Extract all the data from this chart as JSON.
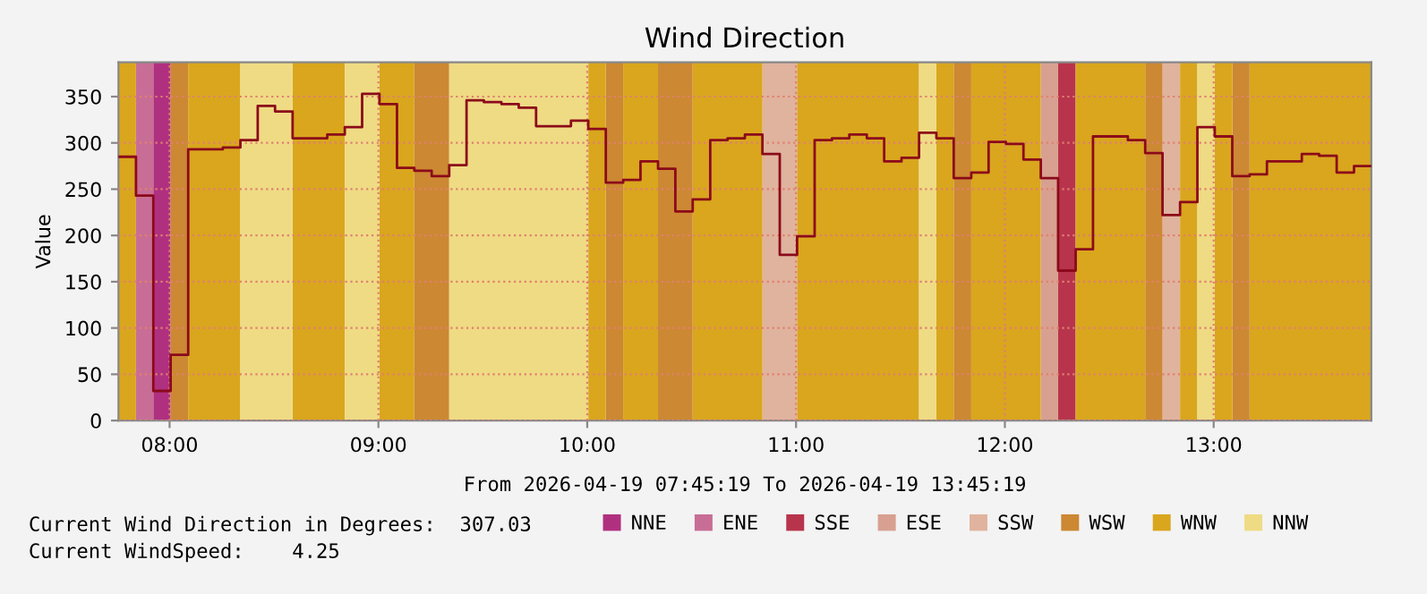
{
  "chart_data": {
    "type": "step",
    "title": "Wind Direction",
    "xlabel": "From 2026-04-19 07:45:19 To 2026-04-19 13:45:19",
    "ylabel": "Value",
    "xlim": [
      7.755,
      13.755
    ],
    "xticks": [
      {
        "value": 8,
        "label": "08:00"
      },
      {
        "value": 9,
        "label": "09:00"
      },
      {
        "value": 10,
        "label": "10:00"
      },
      {
        "value": 11,
        "label": "11:00"
      },
      {
        "value": 12,
        "label": "12:00"
      },
      {
        "value": 13,
        "label": "13:00"
      }
    ],
    "ylim": [
      0,
      387
    ],
    "yticks": [
      0,
      50,
      100,
      150,
      200,
      250,
      300,
      350
    ],
    "grid": true,
    "legend": "bottom",
    "series": [
      {
        "color": "#8b0a1a",
        "x": [
          7.755,
          7.839,
          7.922,
          8.005,
          8.089,
          8.172,
          8.255,
          8.339,
          8.422,
          8.505,
          8.589,
          8.672,
          8.755,
          8.839,
          8.922,
          9.005,
          9.089,
          9.172,
          9.255,
          9.339,
          9.422,
          9.505,
          9.589,
          9.672,
          9.755,
          9.839,
          9.922,
          10.005,
          10.089,
          10.172,
          10.255,
          10.339,
          10.422,
          10.505,
          10.589,
          10.672,
          10.755,
          10.839,
          10.922,
          11.005,
          11.089,
          11.172,
          11.255,
          11.339,
          11.422,
          11.505,
          11.589,
          11.672,
          11.755,
          11.839,
          11.922,
          12.005,
          12.089,
          12.172,
          12.255,
          12.339,
          12.422,
          12.505,
          12.589,
          12.672,
          12.755,
          12.839,
          12.922,
          13.005,
          13.089,
          13.172,
          13.255,
          13.339,
          13.422,
          13.505,
          13.589,
          13.672,
          13.755
        ],
        "values": [
          285,
          243,
          32,
          71,
          293,
          293,
          295,
          303,
          340,
          334,
          305,
          305,
          309,
          317,
          353,
          342,
          273,
          270,
          264,
          276,
          346,
          344,
          342,
          338,
          318,
          318,
          324,
          315,
          257,
          260,
          280,
          272,
          226,
          239,
          303,
          305,
          309,
          288,
          179,
          199,
          303,
          305,
          309,
          305,
          280,
          284,
          311,
          305,
          262,
          268,
          301,
          299,
          282,
          262,
          162,
          185,
          307,
          307,
          303,
          289,
          222,
          236,
          317,
          307,
          264,
          266,
          280,
          280,
          288,
          286,
          268,
          275,
          275
        ]
      }
    ],
    "bands": [
      {
        "axis": "x",
        "from": 7.922,
        "to": 8.005,
        "label": "NNE",
        "color": "#b03080"
      },
      {
        "axis": "x",
        "from": 7.839,
        "to": 7.922,
        "label": "ENE",
        "color": "#c86e96"
      },
      {
        "axis": "x",
        "from": 12.255,
        "to": 12.339,
        "label": "SSE",
        "color": "#b8344c"
      },
      {
        "axis": "x",
        "from": 12.172,
        "to": 12.255,
        "label": "ESE",
        "color": "#d8a090"
      },
      {
        "axis": "x",
        "from": 10.839,
        "to": 11.005,
        "label": "SSW",
        "color": "#e0b39e"
      },
      {
        "axis": "x",
        "from": 12.755,
        "to": 12.839,
        "color": "#e0b39e"
      },
      {
        "axis": "x",
        "from": 8.005,
        "to": 8.089,
        "label": "WSW",
        "color": "#cc8833"
      },
      {
        "axis": "x",
        "from": 9.172,
        "to": 9.339,
        "color": "#cc8833"
      },
      {
        "axis": "x",
        "from": 10.089,
        "to": 10.172,
        "color": "#cc8833"
      },
      {
        "axis": "x",
        "from": 10.339,
        "to": 10.505,
        "color": "#cc8833"
      },
      {
        "axis": "x",
        "from": 11.755,
        "to": 11.839,
        "color": "#cc8833"
      },
      {
        "axis": "x",
        "from": 12.672,
        "to": 12.755,
        "color": "#cc8833"
      },
      {
        "axis": "x",
        "from": 13.089,
        "to": 13.172,
        "color": "#cc8833"
      },
      {
        "axis": "x",
        "from": 7.755,
        "to": 7.839,
        "color": "#d9a61e"
      },
      {
        "axis": "x",
        "from": 8.089,
        "to": 8.339,
        "color": "#d9a61e"
      },
      {
        "axis": "x",
        "from": 8.589,
        "to": 8.839,
        "color": "#d9a61e"
      },
      {
        "axis": "x",
        "from": 9.005,
        "to": 9.172,
        "color": "#d9a61e"
      },
      {
        "axis": "x",
        "from": 10.005,
        "to": 10.089,
        "color": "#d9a61e"
      },
      {
        "axis": "x",
        "from": 10.172,
        "to": 10.339,
        "color": "#d9a61e"
      },
      {
        "axis": "x",
        "from": 10.505,
        "to": 10.839,
        "color": "#d9a61e"
      },
      {
        "axis": "x",
        "from": 11.005,
        "to": 11.589,
        "label": "WNW",
        "color": "#d9a61e"
      },
      {
        "axis": "x",
        "from": 11.672,
        "to": 11.755,
        "color": "#d9a61e"
      },
      {
        "axis": "x",
        "from": 11.839,
        "to": 12.172,
        "color": "#d9a61e"
      },
      {
        "axis": "x",
        "from": 12.339,
        "to": 12.672,
        "color": "#d9a61e"
      },
      {
        "axis": "x",
        "from": 12.839,
        "to": 12.922,
        "color": "#d9a61e"
      },
      {
        "axis": "x",
        "from": 13.005,
        "to": 13.089,
        "color": "#d9a61e"
      },
      {
        "axis": "x",
        "from": 13.172,
        "to": 13.755,
        "color": "#d9a61e"
      },
      {
        "axis": "x",
        "from": 8.339,
        "to": 8.589,
        "label": "NNW",
        "color": "#efdb84"
      },
      {
        "axis": "x",
        "from": 8.839,
        "to": 9.005,
        "color": "#efdb84"
      },
      {
        "axis": "x",
        "from": 9.339,
        "to": 10.005,
        "color": "#efdb84"
      },
      {
        "axis": "x",
        "from": 11.589,
        "to": 11.672,
        "color": "#efdb84"
      },
      {
        "axis": "x",
        "from": 12.922,
        "to": 13.005,
        "color": "#efdb84"
      }
    ],
    "annotations": [
      "Current Wind Direction in Degrees:  307.03",
      "Current WindSpeed:    4.25"
    ]
  }
}
